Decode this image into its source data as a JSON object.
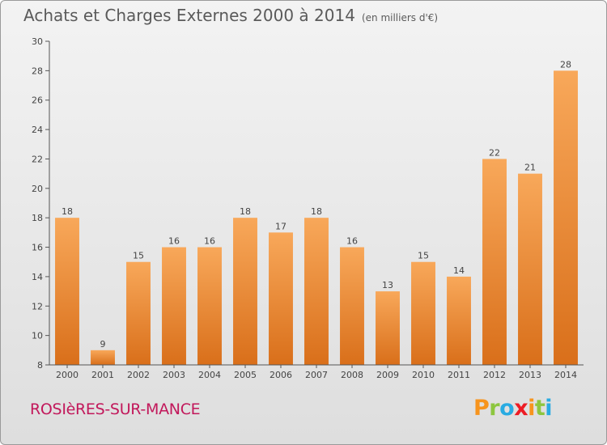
{
  "header": {
    "title": "Achats et Charges Externes 2000 à 2014",
    "unit": "(en milliers d'€)"
  },
  "footer": {
    "commune": "ROSIèRES-SUR-MANCE",
    "logo_letters": [
      "P",
      "r",
      "o",
      "x",
      "i",
      "t",
      "i"
    ],
    "logo_colors": [
      "#f7941d",
      "#8dc63f",
      "#29abe2",
      "#ed1c24",
      "#f7941d",
      "#8dc63f",
      "#29abe2"
    ]
  },
  "chart_data": {
    "type": "bar",
    "title": "Achats et Charges Externes 2000 à 2014",
    "subtitle": "(en milliers d'€)",
    "xlabel": "",
    "ylabel": "",
    "categories": [
      "2000",
      "2001",
      "2002",
      "2003",
      "2004",
      "2005",
      "2006",
      "2007",
      "2008",
      "2009",
      "2010",
      "2011",
      "2012",
      "2013",
      "2014"
    ],
    "values": [
      18,
      9,
      15,
      16,
      16,
      18,
      17,
      18,
      16,
      13,
      15,
      14,
      22,
      21,
      28
    ],
    "value_labels": [
      "18",
      "9",
      "15",
      "16",
      "16",
      "18",
      "17",
      "18",
      "16",
      "13",
      "15",
      "14",
      "22",
      "21",
      "28"
    ],
    "ylim": [
      8,
      30
    ],
    "yticks": [
      "8",
      "10",
      "12",
      "14",
      "16",
      "18",
      "20",
      "22",
      "24",
      "26",
      "28",
      "30"
    ],
    "grid": false,
    "legend": "none",
    "bar_color_top": "#f8a85a",
    "bar_color_bottom": "#d96f1a"
  }
}
